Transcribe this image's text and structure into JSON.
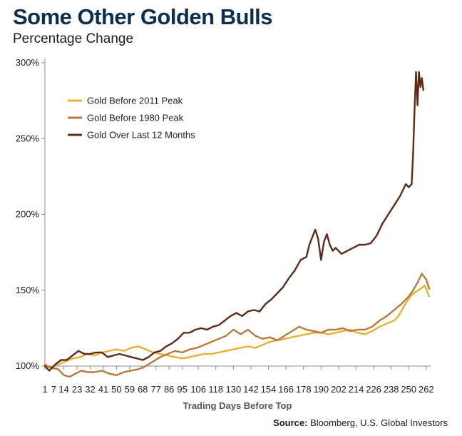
{
  "header": {
    "title": "Some Other Golden Bulls",
    "subtitle": "Percentage Change"
  },
  "source": {
    "label": "Source:",
    "text": "Bloomberg, U.S. Global Investors"
  },
  "colors": {
    "gold_2011": "#e6b035",
    "gold_1980": "#b87a3b",
    "gold_12m": "#5e2b17",
    "axis": "#8c8c8c"
  },
  "chart_data": {
    "type": "line",
    "xlabel": "Trading Days Before Top",
    "ylabel": "",
    "ylim": [
      100,
      300
    ],
    "xlim": [
      1,
      265
    ],
    "yticks": [
      100,
      150,
      200,
      250,
      300
    ],
    "ytick_labels": [
      "100%",
      "150%",
      "200%",
      "250%",
      "300%"
    ],
    "xticks": [
      1,
      7,
      14,
      23,
      32,
      41,
      50,
      59,
      68,
      77,
      86,
      95,
      106,
      118,
      130,
      142,
      154,
      166,
      178,
      190,
      202,
      214,
      226,
      238,
      250,
      262
    ],
    "grid": false,
    "legend_position": "top-left",
    "series": [
      {
        "name": "Gold Before 2011 Peak",
        "color": "#e6b035",
        "x": [
          1,
          5,
          10,
          15,
          20,
          25,
          30,
          35,
          40,
          45,
          50,
          55,
          60,
          65,
          70,
          75,
          80,
          85,
          90,
          95,
          100,
          105,
          110,
          115,
          120,
          125,
          130,
          135,
          140,
          145,
          150,
          155,
          160,
          165,
          170,
          175,
          180,
          185,
          190,
          195,
          200,
          205,
          210,
          215,
          220,
          225,
          230,
          235,
          240,
          243,
          246,
          249,
          252,
          255,
          258,
          261,
          264
        ],
        "y": [
          100,
          99,
          101,
          103,
          105,
          106,
          108,
          107,
          109,
          110,
          111,
          110,
          112,
          113,
          111,
          109,
          108,
          107,
          106,
          105,
          106,
          107,
          108,
          108,
          109,
          110,
          111,
          112,
          113,
          112,
          114,
          116,
          117,
          118,
          119,
          120,
          121,
          122,
          122,
          121,
          122,
          123,
          124,
          122,
          121,
          123,
          126,
          128,
          130,
          133,
          138,
          143,
          147,
          149,
          151,
          153,
          146
        ]
      },
      {
        "name": "Gold Before 1980 Peak",
        "color": "#b87a3b",
        "x": [
          1,
          5,
          10,
          14,
          18,
          22,
          26,
          30,
          35,
          40,
          45,
          50,
          55,
          60,
          65,
          70,
          75,
          80,
          85,
          90,
          95,
          100,
          105,
          110,
          115,
          120,
          125,
          130,
          135,
          140,
          145,
          150,
          155,
          160,
          165,
          170,
          175,
          180,
          185,
          190,
          195,
          200,
          205,
          210,
          215,
          220,
          225,
          230,
          235,
          240,
          245,
          250,
          253,
          256,
          259,
          262,
          264
        ],
        "y": [
          101,
          99,
          98,
          94,
          93,
          95,
          97,
          96,
          96,
          97,
          95,
          94,
          96,
          97,
          98,
          100,
          103,
          106,
          108,
          110,
          109,
          111,
          112,
          114,
          116,
          118,
          120,
          124,
          121,
          124,
          120,
          118,
          119,
          117,
          120,
          123,
          126,
          124,
          123,
          122,
          124,
          124,
          125,
          123,
          124,
          124,
          126,
          130,
          133,
          137,
          141,
          146,
          150,
          155,
          161,
          157,
          151
        ]
      },
      {
        "name": "Gold Over Last 12 Months",
        "color": "#5e2b17",
        "x": [
          1,
          4,
          8,
          12,
          16,
          20,
          24,
          28,
          32,
          36,
          40,
          44,
          48,
          52,
          56,
          60,
          64,
          68,
          72,
          76,
          80,
          84,
          88,
          92,
          96,
          100,
          104,
          108,
          112,
          116,
          120,
          124,
          128,
          132,
          136,
          140,
          144,
          148,
          152,
          156,
          160,
          164,
          168,
          172,
          176,
          180,
          182,
          184,
          186,
          188,
          190,
          192,
          194,
          196,
          198,
          200,
          204,
          208,
          212,
          216,
          220,
          224,
          228,
          232,
          236,
          240,
          244,
          248,
          250,
          252,
          253,
          254,
          255,
          256,
          257,
          258,
          259,
          260
        ],
        "y": [
          100,
          97,
          101,
          104,
          104,
          107,
          110,
          108,
          108,
          109,
          109,
          106,
          107,
          108,
          107,
          106,
          105,
          104,
          106,
          109,
          110,
          113,
          115,
          118,
          122,
          122,
          124,
          125,
          124,
          126,
          127,
          130,
          133,
          135,
          133,
          136,
          137,
          136,
          141,
          144,
          148,
          152,
          158,
          163,
          170,
          172,
          180,
          185,
          190,
          184,
          170,
          182,
          187,
          180,
          176,
          178,
          174,
          176,
          178,
          180,
          180,
          181,
          186,
          194,
          200,
          206,
          212,
          220,
          218,
          220,
          240,
          270,
          294,
          272,
          294,
          284,
          290,
          282
        ]
      }
    ]
  }
}
